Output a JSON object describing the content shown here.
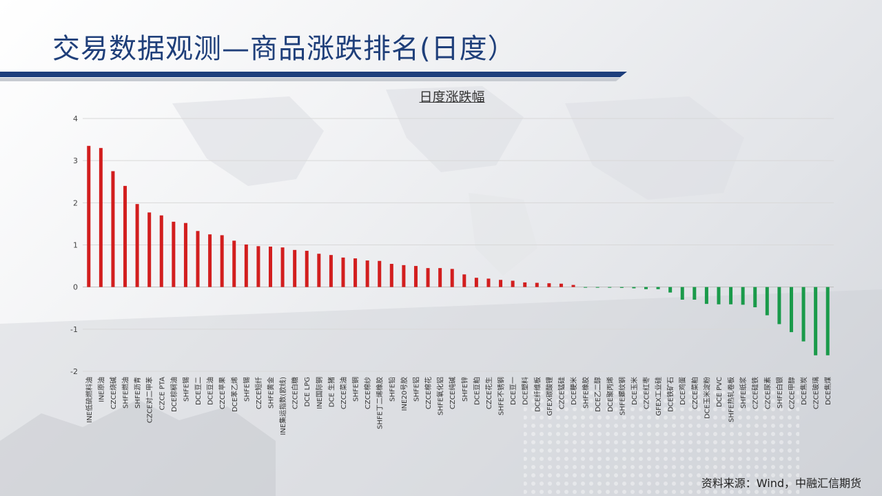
{
  "page": {
    "title": "交易数据观测—商品涨跌排名(日度）",
    "source": "资料来源：Wind，中融汇信期货",
    "colors": {
      "title": "#1f3f7a",
      "bar_bg": "#1e3f7c",
      "up": "#d21e1e",
      "down": "#1a9a4a"
    }
  },
  "chart_data": {
    "type": "bar",
    "title": "日度涨跌幅",
    "xlabel": "",
    "ylabel": "",
    "ylim": [
      -2,
      4
    ],
    "yticks": [
      4,
      3,
      2,
      1,
      0,
      -1,
      -2
    ],
    "grid": true,
    "categories": [
      "INE低硫燃料油",
      "INE原油",
      "CZCE烧碱",
      "SHFE燃油",
      "SHFE沥青",
      "CZCE对二甲苯",
      "CZCE PTA",
      "DCE棕榈油",
      "SHFE锡",
      "DCE豆二",
      "DCE豆油",
      "CZCE苹果",
      "DCE苯乙烯",
      "SHFE锡",
      "CZCE短纤",
      "SHFE黄金",
      "INE集运指数(欧线)",
      "CZCE白糖",
      "DCE LPG",
      "INE国际铜",
      "DCE 生猪",
      "CZCE菜油",
      "SHFE铜",
      "CZCE棉纱",
      "SHFE丁二烯橡胶",
      "SHFE铅",
      "INE20号胶",
      "SHFE铝",
      "CZCE棉花",
      "SHFE氧化铝",
      "CZCE纯碱",
      "SHFE锌",
      "DCE豆粕",
      "CZCE花生",
      "SHFE不锈钢",
      "DCE豆一",
      "DCE塑料",
      "DCE纤维板",
      "GFEX碳酸锂",
      "CZCE锰硅",
      "DCE粳米",
      "SHFE橡胶",
      "DCE乙二醇",
      "DCE聚丙烯",
      "SHFE螺纹钢",
      "DCE玉米",
      "CZCE红枣",
      "GFEX工业硅",
      "DCE铁矿石",
      "DCE鸡蛋",
      "CZCE菜粕",
      "DCE玉米淀粉",
      "DCE PVC",
      "SHFE热轧卷板",
      "SHFE纸浆",
      "CZCE硅铁",
      "CZCE尿素",
      "SHFE白银",
      "CZCE甲醇",
      "DCE焦炭",
      "CZCE玻璃",
      "DCE焦煤"
    ],
    "values": [
      3.35,
      3.3,
      2.75,
      2.4,
      1.97,
      1.77,
      1.7,
      1.55,
      1.52,
      1.33,
      1.25,
      1.23,
      1.1,
      1.01,
      0.97,
      0.96,
      0.94,
      0.88,
      0.86,
      0.79,
      0.76,
      0.7,
      0.68,
      0.63,
      0.62,
      0.55,
      0.52,
      0.5,
      0.45,
      0.45,
      0.43,
      0.3,
      0.22,
      0.2,
      0.17,
      0.15,
      0.11,
      0.1,
      0.09,
      0.08,
      0.05,
      -0.01,
      -0.01,
      -0.01,
      -0.02,
      -0.03,
      -0.05,
      -0.05,
      -0.13,
      -0.3,
      -0.3,
      -0.4,
      -0.41,
      -0.41,
      -0.42,
      -0.48,
      -0.67,
      -0.88,
      -1.07,
      -1.29,
      -1.62,
      -1.62
    ]
  }
}
